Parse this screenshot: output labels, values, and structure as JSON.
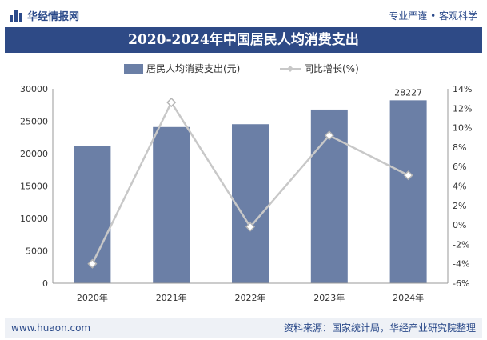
{
  "header": {
    "brand": "华经情报网",
    "slogan": "专业严谨 • 客观科学"
  },
  "footer": {
    "website": "www.huaon.com",
    "source": "资料来源：国家统计局，华经产业研究院整理"
  },
  "colors": {
    "bar": "#6b7fa6",
    "line": "#c8c8c8",
    "title_bg": "#2e4a86",
    "brand": "#2b4a8a"
  },
  "chart_data": {
    "type": "bar",
    "title": "2020-2024年中国居民人均消费支出",
    "categories": [
      "2020年",
      "2021年",
      "2022年",
      "2023年",
      "2024年"
    ],
    "series": [
      {
        "name": "居民人均消费支出(元)",
        "type": "bar",
        "axis": "left",
        "values": [
          21210,
          24100,
          24538,
          26796,
          28227
        ]
      },
      {
        "name": "同比增长(%)",
        "type": "line",
        "axis": "right",
        "values": [
          -4.0,
          12.6,
          -0.2,
          9.2,
          5.1
        ]
      }
    ],
    "data_labels": [
      {
        "series": 0,
        "index": 4,
        "text": "28227"
      }
    ],
    "ylim_left": [
      0,
      30000
    ],
    "yticks_left": [
      0,
      5000,
      10000,
      15000,
      20000,
      25000,
      30000
    ],
    "ylim_right": [
      -6,
      14
    ],
    "yticks_right": [
      "-6%",
      "-4%",
      "-2%",
      "0%",
      "2%",
      "4%",
      "6%",
      "8%",
      "10%",
      "12%",
      "14%"
    ],
    "legend_position": "top-center",
    "grid": false
  }
}
